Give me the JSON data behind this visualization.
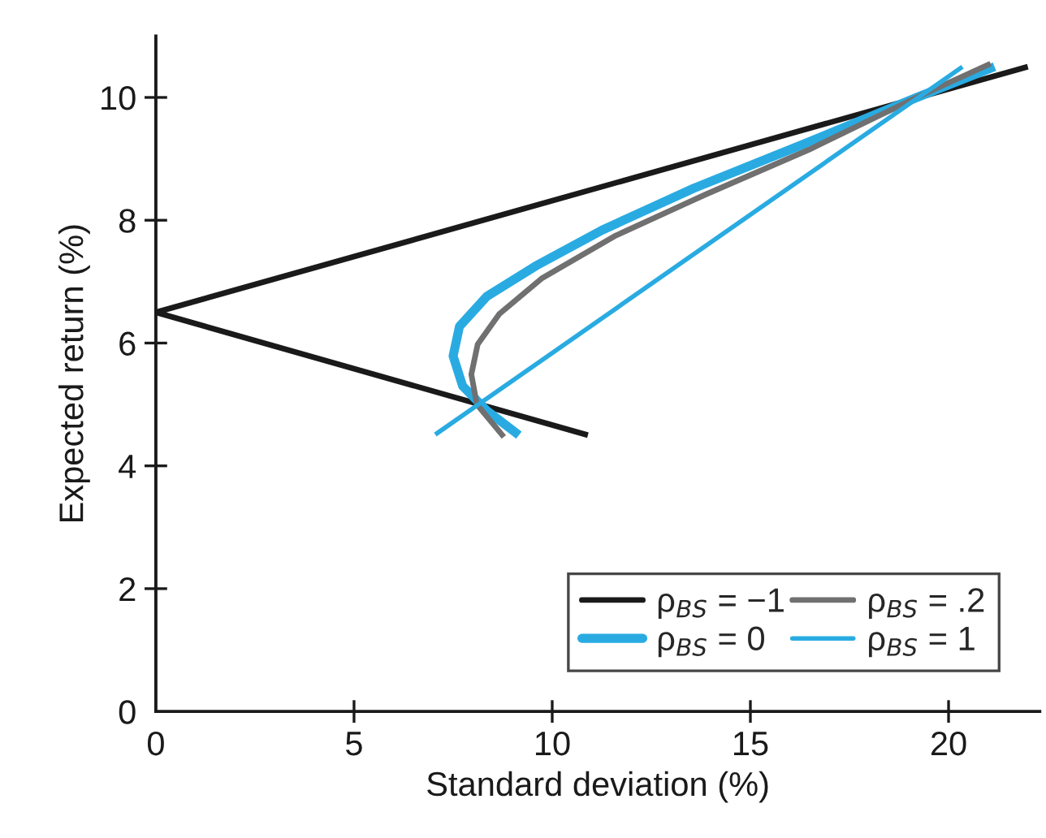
{
  "chart_data": {
    "type": "line",
    "xlabel": "Standard deviation (%)",
    "ylabel": "Expected return (%)",
    "xlim": [
      0,
      22.3
    ],
    "ylim": [
      0,
      11
    ],
    "xticks": [
      0,
      5,
      10,
      15,
      20
    ],
    "yticks": [
      0,
      2,
      4,
      6,
      8,
      10
    ],
    "grid": false,
    "legend": "bottom right",
    "marker": "none",
    "line_style": "solid",
    "series": [
      {
        "name": "ρ$_{BS}$ = −1",
        "color": "#1a1a1a",
        "x": [
          10.9,
          0,
          22.0
        ],
        "values": [
          4.5,
          6.5,
          10.5
        ]
      },
      {
        "name": "ρ$_{BS}$ = 0",
        "color": "#29abe2",
        "x": [
          9.16,
          8.35,
          7.74,
          7.5,
          7.66,
          8.35,
          9.57,
          11.26,
          13.57,
          16.19,
          19.2,
          21.16
        ],
        "values": [
          4.5,
          4.9,
          5.3,
          5.79,
          6.27,
          6.76,
          7.25,
          7.84,
          8.52,
          9.2,
          10.0,
          10.5
        ]
      },
      {
        "name": "ρ$_{BS}$ = .2",
        "color": "#707070",
        "x": [
          8.78,
          8.1,
          7.96,
          8.12,
          8.66,
          9.73,
          11.57,
          13.87,
          16.48,
          19.2,
          21.06
        ],
        "values": [
          4.47,
          5.0,
          5.49,
          5.98,
          6.47,
          7.05,
          7.74,
          8.42,
          9.15,
          10.0,
          10.55
        ]
      },
      {
        "name": "ρ$_{BS}$ = 1",
        "color": "#29abe2",
        "x": [
          7.05,
          20.35
        ],
        "values": [
          4.51,
          10.5
        ]
      }
    ]
  }
}
